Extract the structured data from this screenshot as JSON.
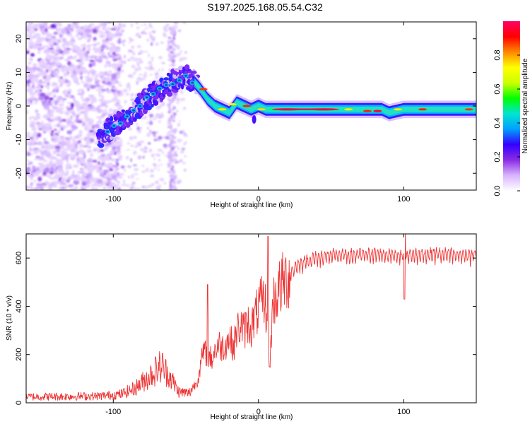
{
  "title": "S197.2025.168.05.54.C32",
  "chart_data": [
    {
      "type": "heatmap",
      "name": "spectrogram",
      "xlabel": "Height of straight line (km)",
      "ylabel": "Frequency (Hz)",
      "xlim": [
        -160,
        150
      ],
      "ylim": [
        -25,
        25
      ],
      "xticks": [
        -100,
        0,
        100
      ],
      "yticks": [
        -20,
        -10,
        0,
        10,
        20
      ],
      "ridge": {
        "x": [
          -108,
          -100,
          -90,
          -80,
          -70,
          -60,
          -50,
          -44,
          -40,
          -35,
          -30,
          -25,
          -20,
          -15,
          -10,
          -5,
          0,
          5,
          10,
          20,
          40,
          60,
          70,
          80,
          85,
          90,
          100,
          110,
          120,
          130,
          140,
          150
        ],
        "y": [
          -9,
          -6,
          -3,
          1,
          4,
          7,
          9,
          7,
          5,
          2,
          0,
          -1,
          -2,
          1,
          0,
          -1,
          0,
          -1,
          -1,
          -1,
          -1,
          -1,
          -1,
          -1,
          -1,
          -2,
          -1,
          -1,
          -1,
          -1,
          -1,
          -1
        ]
      },
      "colorbar": {
        "label": "Normalized spectral amplitude",
        "range": [
          0,
          1
        ],
        "ticks": [
          0.0,
          0.2,
          0.4,
          0.6,
          0.8
        ],
        "tick_labels": [
          "0.0",
          "0.2",
          "0.4",
          "0.6",
          "0.8"
        ],
        "colors": [
          "#ffffff",
          "#d8b4ff",
          "#8a2be2",
          "#3300ff",
          "#00a0ff",
          "#00e5d0",
          "#00ff00",
          "#ccff00",
          "#ffff00",
          "#ff8800",
          "#ff0000",
          "#ff0066"
        ]
      }
    },
    {
      "type": "line",
      "name": "snr",
      "xlabel": "Height of straight line (km)",
      "ylabel": "SNR (10 * v/v)",
      "xlim": [
        -160,
        150
      ],
      "ylim": [
        0,
        700
      ],
      "xticks": [
        -100,
        0,
        100
      ],
      "yticks": [
        0,
        200,
        400,
        600
      ],
      "color": "#ee3333",
      "envelope": {
        "x": [
          -160,
          -110,
          -95,
          -85,
          -75,
          -68,
          -62,
          -55,
          -48,
          -42,
          -38,
          -35,
          -32,
          -30,
          -27,
          -25,
          -22,
          -20,
          -17,
          -15,
          -12,
          -10,
          -7,
          -5,
          -2,
          0,
          3,
          5,
          8,
          10,
          15,
          20,
          25,
          30,
          40,
          50,
          60,
          80,
          100,
          120,
          150
        ],
        "y": [
          25,
          28,
          35,
          60,
          110,
          150,
          120,
          45,
          40,
          90,
          210,
          200,
          180,
          220,
          240,
          230,
          250,
          270,
          230,
          300,
          320,
          300,
          330,
          310,
          360,
          390,
          420,
          400,
          180,
          420,
          480,
          520,
          560,
          580,
          600,
          610,
          610,
          615,
          610,
          615,
          610
        ]
      },
      "spikes": [
        {
          "x": 6.5,
          "y": 690
        },
        {
          "x": 7.5,
          "y": 150
        },
        {
          "x": -35,
          "y": 490
        },
        {
          "x": -66,
          "y": 205
        },
        {
          "x": 101,
          "y": 700
        },
        {
          "x": 100.5,
          "y": 430
        }
      ]
    }
  ]
}
